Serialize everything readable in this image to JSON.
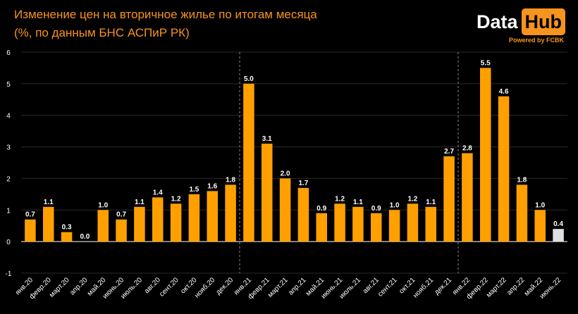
{
  "header": {
    "title_line1": "Изменение цен на вторичное жилье по итогам месяца",
    "title_line2": "(%, по данным БНС АСПиР РК)"
  },
  "logo": {
    "part1": "Data",
    "part2": "Hub",
    "powered": "Powered by FCBK"
  },
  "colors": {
    "bar": "#ffa000",
    "highlight_bar": "#e0e0e0",
    "grid": "#2a2a2a",
    "accent": "#f7941d"
  },
  "chart_data": {
    "type": "bar",
    "categories": [
      "янв.20",
      "февр.20",
      "март.20",
      "апр.20",
      "май.20",
      "июнь.20",
      "июль.20",
      "авг.20",
      "сент.20",
      "окт.20",
      "нояб.20",
      "дек.20",
      "янв.21",
      "февр.21",
      "март.21",
      "апр.21",
      "май.21",
      "июнь.21",
      "июль.21",
      "авг.21",
      "сент.21",
      "окт.21",
      "нояб.21",
      "дек.21",
      "янв.22",
      "февр.22",
      "март.22",
      "апр.22",
      "май.22",
      "июнь.22"
    ],
    "values": [
      0.7,
      1.1,
      0.3,
      0.0,
      1.0,
      0.7,
      1.1,
      1.4,
      1.2,
      1.5,
      1.6,
      1.8,
      5.0,
      3.1,
      2.0,
      1.7,
      0.9,
      1.2,
      1.1,
      0.9,
      1.0,
      1.2,
      1.1,
      2.7,
      2.8,
      5.5,
      4.6,
      1.8,
      1.0,
      0.4
    ],
    "value_labels": [
      "0.7",
      "1.1",
      "0.3",
      "0.0",
      "1.0",
      "0.7",
      "1.1",
      "1.4",
      "1.2",
      "1.5",
      "1.6",
      "1.8",
      "5.0",
      "3.1",
      "2.0",
      "1.7",
      "0.9",
      "1.2",
      "1.1",
      "0.9",
      "1.0",
      "1.2",
      "1.1",
      "2.7",
      "2.8",
      "5.5",
      "4.6",
      "1.8",
      "1.0",
      "0.4"
    ],
    "highlight_index": 29,
    "ylim": [
      -1,
      6
    ],
    "yticks": [
      "-1",
      "0",
      "1",
      "2",
      "3",
      "4",
      "5",
      "6"
    ],
    "year_separators_after": [
      "дек.20",
      "дек.21"
    ],
    "grid": true,
    "legend": "none"
  }
}
